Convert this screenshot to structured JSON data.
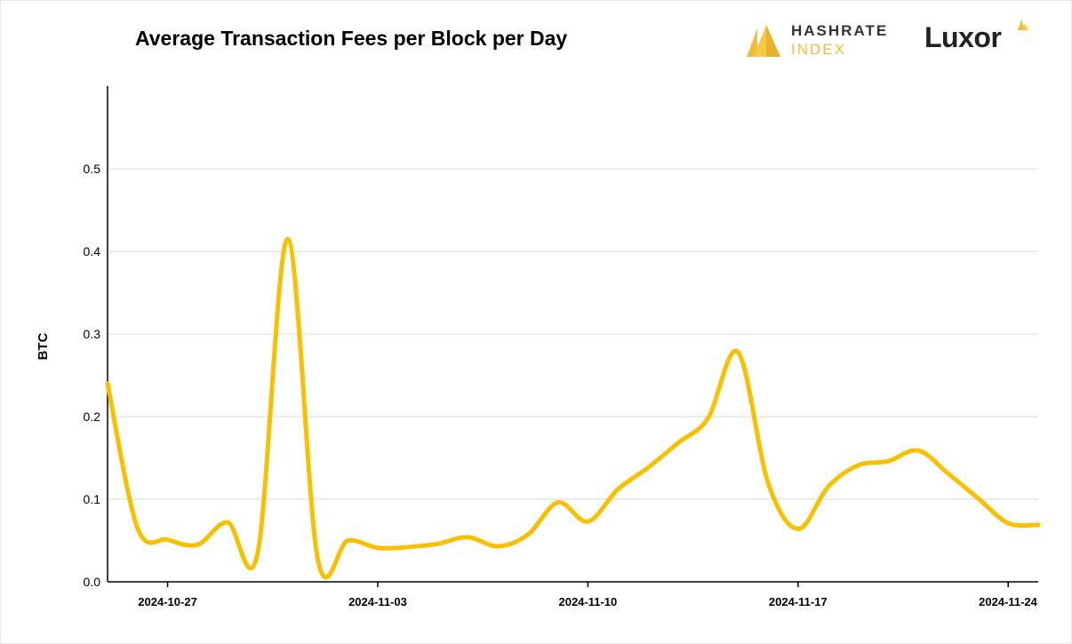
{
  "chart_data": {
    "type": "line",
    "title": "Average Transaction Fees per Block per Day",
    "xlabel": "",
    "ylabel": "BTC",
    "ylim": [
      0,
      0.6
    ],
    "yticks": [
      "0.0",
      "0.1",
      "0.2",
      "0.3",
      "0.4",
      "0.5"
    ],
    "xticks": [
      "2024-10-27",
      "2024-11-03",
      "2024-11-10",
      "2024-11-17",
      "2024-11-24"
    ],
    "grid": true,
    "color": "#f8c001",
    "series": [
      {
        "x": [
          "2024-10-25",
          "2024-10-26",
          "2024-10-27",
          "2024-10-28",
          "2024-10-29",
          "2024-10-30",
          "2024-10-31",
          "2024-11-01",
          "2024-11-02",
          "2024-11-03",
          "2024-11-04",
          "2024-11-05",
          "2024-11-06",
          "2024-11-07",
          "2024-11-08",
          "2024-11-09",
          "2024-11-10",
          "2024-11-11",
          "2024-11-12",
          "2024-11-13",
          "2024-11-14",
          "2024-11-15",
          "2024-11-16",
          "2024-11-17",
          "2024-11-18",
          "2024-11-19",
          "2024-11-20",
          "2024-11-21",
          "2024-11-22",
          "2024-11-23",
          "2024-11-24",
          "2024-11-25"
        ],
        "values": [
          0.24,
          0.065,
          0.051,
          0.045,
          0.072,
          0.035,
          0.415,
          0.028,
          0.05,
          0.041,
          0.042,
          0.046,
          0.054,
          0.043,
          0.057,
          0.096,
          0.073,
          0.112,
          0.138,
          0.168,
          0.198,
          0.278,
          0.12,
          0.064,
          0.115,
          0.141,
          0.146,
          0.159,
          0.131,
          0.101,
          0.071,
          0.069
        ]
      }
    ]
  },
  "logos": {
    "hashrate_line1": "HASHRATE",
    "hashrate_line2": "INDEX",
    "luxor": "Luxor"
  }
}
